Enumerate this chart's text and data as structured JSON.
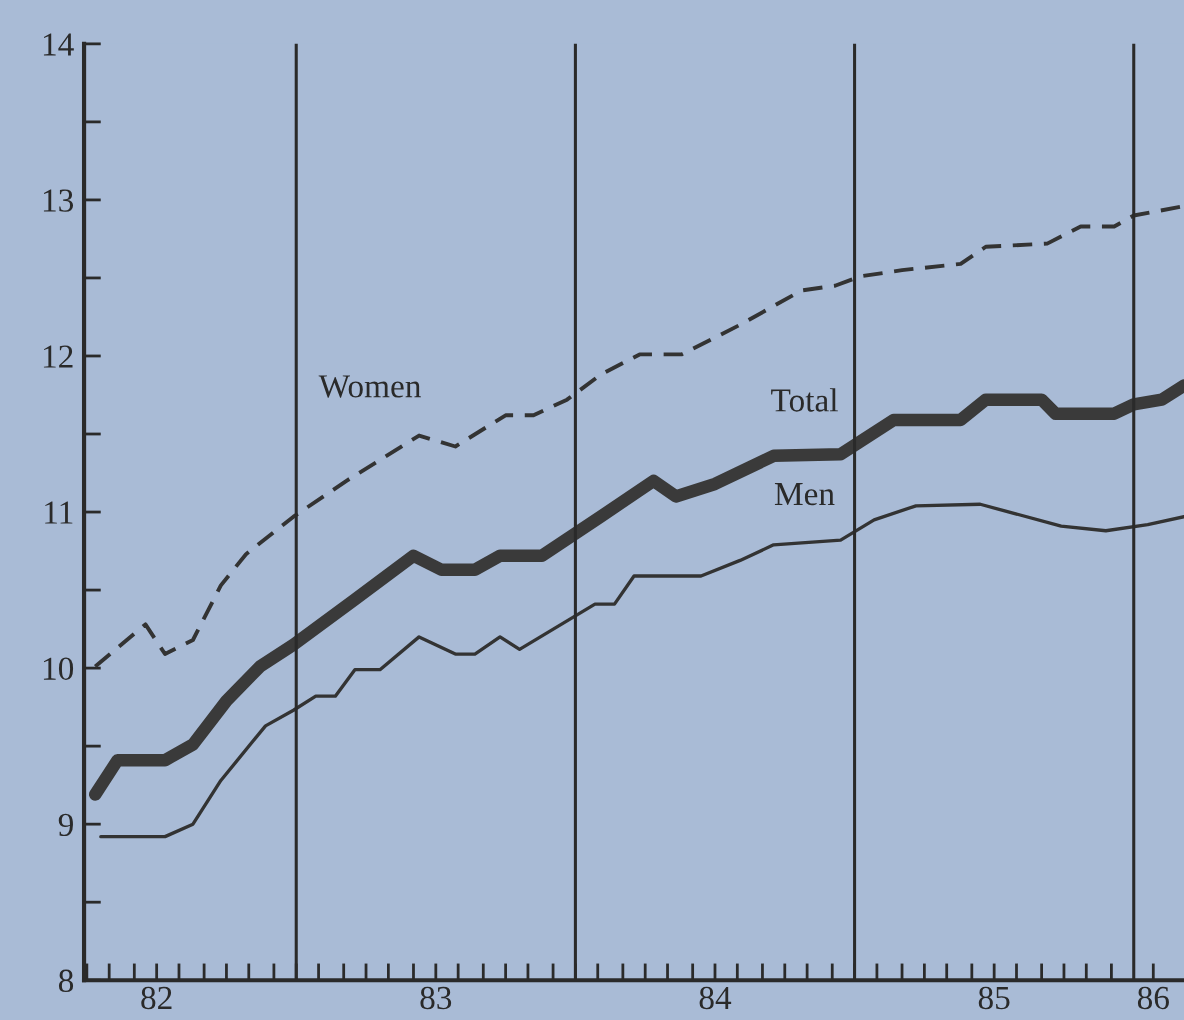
{
  "chart_data": {
    "type": "line",
    "xlim": [
      82.24,
      86.18
    ],
    "ylim": [
      8,
      14
    ],
    "yticks": [
      8,
      {
        "value": 8.5,
        "label": null
      },
      9,
      {
        "value": 9.5,
        "label": null
      },
      10,
      {
        "value": 10.5,
        "label": null
      },
      11,
      {
        "value": 11.5,
        "label": null
      },
      12,
      {
        "value": 12.5,
        "label": null
      },
      13,
      {
        "value": 13.5,
        "label": null
      },
      14
    ],
    "xticks": [
      {
        "value": 82.25,
        "label": null
      },
      {
        "value": 82.33,
        "label": null
      },
      {
        "value": 82.42,
        "label": null
      },
      {
        "value": 82.5,
        "label": "82"
      },
      {
        "value": 82.58,
        "label": null
      },
      {
        "value": 82.67,
        "label": null
      },
      {
        "value": 82.75,
        "label": null
      },
      {
        "value": 82.83,
        "label": null
      },
      {
        "value": 82.92,
        "label": null
      },
      {
        "value": 83.0,
        "label": null
      },
      {
        "value": 83.08,
        "label": null
      },
      {
        "value": 83.17,
        "label": null
      },
      {
        "value": 83.25,
        "label": null
      },
      {
        "value": 83.33,
        "label": null
      },
      {
        "value": 83.42,
        "label": null
      },
      {
        "value": 83.5,
        "label": "83"
      },
      {
        "value": 83.58,
        "label": null
      },
      {
        "value": 83.67,
        "label": null
      },
      {
        "value": 83.75,
        "label": null
      },
      {
        "value": 83.83,
        "label": null
      },
      {
        "value": 83.92,
        "label": null
      },
      {
        "value": 84.0,
        "label": null
      },
      {
        "value": 84.08,
        "label": null
      },
      {
        "value": 84.17,
        "label": null
      },
      {
        "value": 84.25,
        "label": null
      },
      {
        "value": 84.33,
        "label": null
      },
      {
        "value": 84.42,
        "label": null
      },
      {
        "value": 84.5,
        "label": "84"
      },
      {
        "value": 84.58,
        "label": null
      },
      {
        "value": 84.67,
        "label": null
      },
      {
        "value": 84.75,
        "label": null
      },
      {
        "value": 84.83,
        "label": null
      },
      {
        "value": 84.92,
        "label": null
      },
      {
        "value": 85.0,
        "label": null
      },
      {
        "value": 85.08,
        "label": null
      },
      {
        "value": 85.17,
        "label": null
      },
      {
        "value": 85.25,
        "label": null
      },
      {
        "value": 85.33,
        "label": null
      },
      {
        "value": 85.42,
        "label": null
      },
      {
        "value": 85.5,
        "label": "85"
      },
      {
        "value": 85.58,
        "label": null
      },
      {
        "value": 85.67,
        "label": null
      },
      {
        "value": 85.75,
        "label": null
      },
      {
        "value": 85.83,
        "label": null
      },
      {
        "value": 85.92,
        "label": null
      },
      {
        "value": 86.07,
        "label": "86"
      }
    ],
    "grid": false,
    "legend": false,
    "marker": "none",
    "ref_lines": [
      {
        "axis": "x",
        "value": 83.0,
        "color": "#2a2a2a"
      },
      {
        "axis": "x",
        "value": 84.0,
        "color": "#2a2a2a"
      },
      {
        "axis": "x",
        "value": 85.0,
        "color": "#2a2a2a"
      },
      {
        "axis": "x",
        "value": 86.0,
        "color": "#2a2a2a"
      }
    ],
    "series": [
      {
        "name": "Women",
        "color": "#333333",
        "line_style": "dashed",
        "x": [
          82.28,
          82.46,
          82.53,
          82.63,
          82.73,
          82.82,
          82.99,
          83.18,
          83.44,
          83.57,
          83.75,
          83.85,
          83.97,
          84.09,
          84.23,
          84.38,
          84.59,
          84.81,
          84.93,
          85.02,
          85.17,
          85.38,
          85.47,
          85.69,
          85.81,
          85.93,
          86.0,
          86.18
        ],
        "values": [
          10.01,
          10.28,
          10.09,
          10.18,
          10.53,
          10.73,
          10.97,
          11.2,
          11.49,
          11.42,
          11.62,
          11.62,
          11.72,
          11.88,
          12.01,
          12.01,
          12.2,
          12.42,
          12.45,
          12.51,
          12.55,
          12.59,
          12.7,
          12.72,
          12.83,
          12.83,
          12.9,
          12.96
        ]
      },
      {
        "name": "Total",
        "color": "#3a3a3a",
        "line_style": "solid",
        "x": [
          82.28,
          82.36,
          82.53,
          82.63,
          82.75,
          82.87,
          82.99,
          83.21,
          83.42,
          83.52,
          83.64,
          83.73,
          83.88,
          84.09,
          84.28,
          84.36,
          84.5,
          84.71,
          84.95,
          85.14,
          85.38,
          85.47,
          85.67,
          85.72,
          85.93,
          86.0,
          86.1,
          86.18
        ],
        "values": [
          9.19,
          9.41,
          9.41,
          9.51,
          9.79,
          10.01,
          10.15,
          10.44,
          10.72,
          10.63,
          10.63,
          10.72,
          10.72,
          10.97,
          11.2,
          11.1,
          11.18,
          11.36,
          11.37,
          11.59,
          11.59,
          11.72,
          11.72,
          11.63,
          11.63,
          11.69,
          11.72,
          11.81
        ]
      },
      {
        "name": "Men",
        "color": "#333333",
        "line_style": "solid",
        "x": [
          82.3,
          82.53,
          82.63,
          82.73,
          82.89,
          82.99,
          83.07,
          83.14,
          83.21,
          83.3,
          83.44,
          83.57,
          83.64,
          83.73,
          83.8,
          84.07,
          84.14,
          84.21,
          84.45,
          84.59,
          84.71,
          84.95,
          85.07,
          85.22,
          85.45,
          85.74,
          85.9,
          86.05,
          86.18
        ],
        "values": [
          8.92,
          8.92,
          9.0,
          9.28,
          9.63,
          9.73,
          9.82,
          9.82,
          9.99,
          9.99,
          10.2,
          10.09,
          10.09,
          10.2,
          10.12,
          10.41,
          10.41,
          10.59,
          10.59,
          10.69,
          10.79,
          10.82,
          10.95,
          11.04,
          11.05,
          10.91,
          10.88,
          10.92,
          10.97
        ]
      }
    ]
  }
}
